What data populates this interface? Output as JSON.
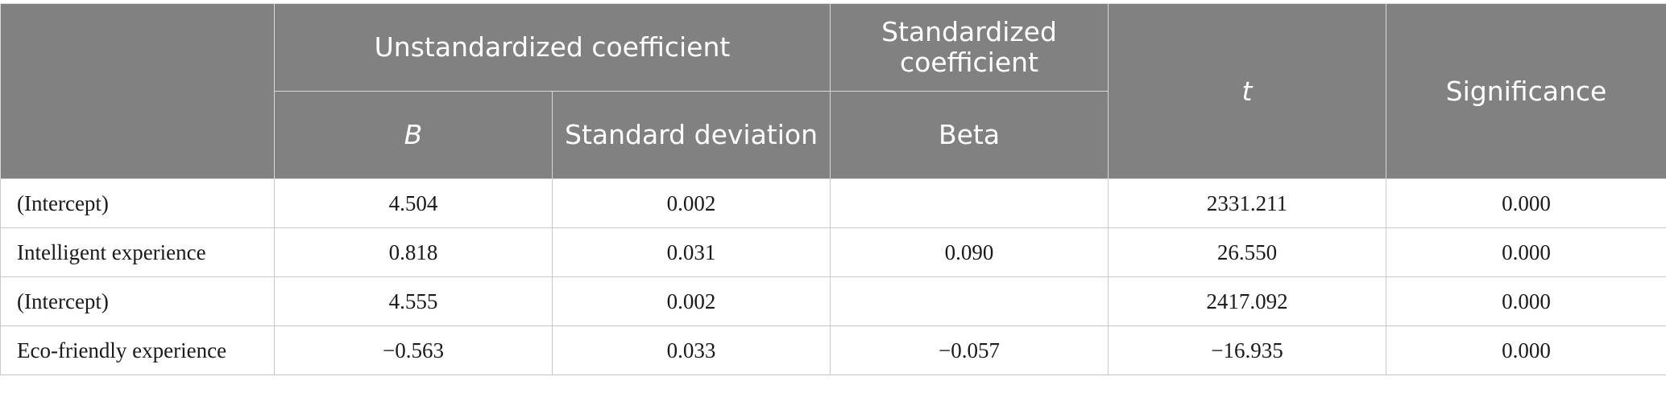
{
  "table": {
    "header": {
      "group_unstandardized": "Unstandardized coefficient",
      "group_standardized": "Standardized coefficient",
      "col_b": "B",
      "col_std_dev": "Standard deviation",
      "col_beta": "Beta",
      "col_t": "t",
      "col_significance": "Significance"
    },
    "rows": [
      {
        "label": "(Intercept)",
        "b": "4.504",
        "std_dev": "0.002",
        "beta": "",
        "t": "2331.211",
        "sig": "0.000"
      },
      {
        "label": "Intelligent experience",
        "b": "0.818",
        "std_dev": "0.031",
        "beta": "0.090",
        "t": "26.550",
        "sig": "0.000"
      },
      {
        "label": "(Intercept)",
        "b": "4.555",
        "std_dev": "0.002",
        "beta": "",
        "t": "2417.092",
        "sig": "0.000"
      },
      {
        "label": "Eco-friendly experience",
        "b": "−0.563",
        "std_dev": "0.033",
        "beta": "−0.057",
        "t": "−16.935",
        "sig": "0.000"
      }
    ]
  },
  "colors": {
    "header_bg": "#808180",
    "header_text": "#ffffff",
    "grid": "#c8c8c8"
  }
}
